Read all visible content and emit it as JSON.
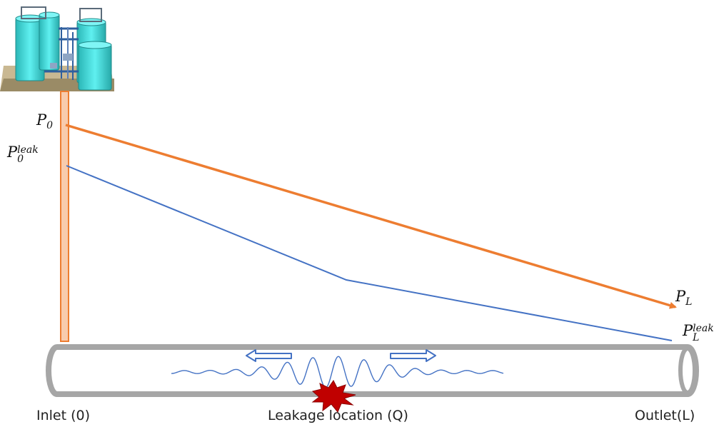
{
  "labels": {
    "p0_base": "P",
    "p0_sub": "0",
    "p0_leak_base": "P",
    "p0_leak_sup": "leak",
    "p0_leak_sub": "0",
    "pl_base": "P",
    "pl_sub": "L",
    "pl_leak_base": "P",
    "pl_leak_sup": "leak",
    "pl_leak_sub": "L",
    "inlet": "Inlet (0)",
    "leakage": "Leakage location (Q)",
    "outlet": "Outlet(L)"
  },
  "icons": {
    "tank_facility": "storage-tank-facility-icon",
    "leak_burst": "leak-burst-icon",
    "arrow_left": "arrow-left-icon",
    "arrow_right": "arrow-right-icon"
  },
  "colors": {
    "normal_pressure_line": "#ED7D31",
    "leak_pressure_line": "#4472C4",
    "pipe_stroke": "#A6A6A6",
    "wave": "#4472C4",
    "leak_burst": "#C00000",
    "tank": "#3FD6D6",
    "riser_fill": "#F8CBAD",
    "riser_stroke": "#ED7D31"
  }
}
